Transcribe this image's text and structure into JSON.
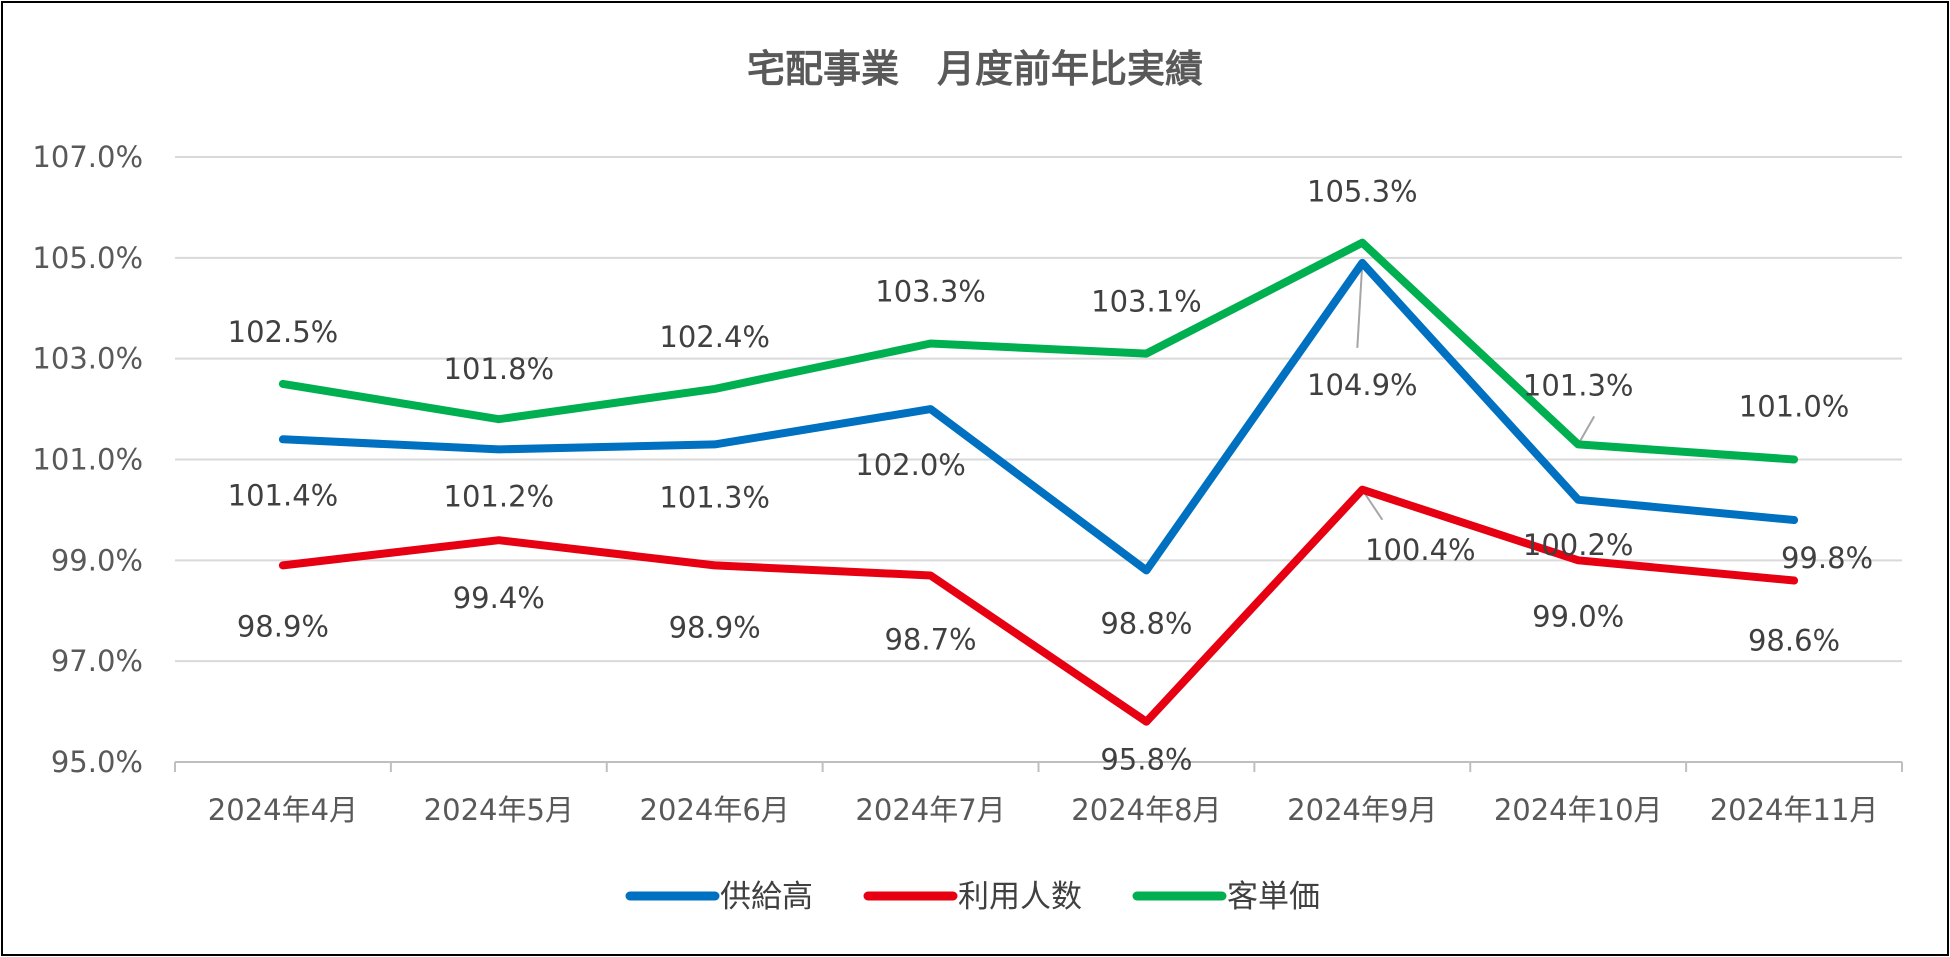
{
  "chart_data": {
    "type": "line",
    "title": "宅配事業　月度前年比実績",
    "xlabel": "",
    "ylabel": "",
    "ylim": [
      95.0,
      107.0
    ],
    "yticks": [
      "95.0%",
      "97.0%",
      "99.0%",
      "101.0%",
      "103.0%",
      "105.0%",
      "107.0%"
    ],
    "ytick_values": [
      95,
      97,
      99,
      101,
      103,
      105,
      107
    ],
    "categories": [
      "2024年4月",
      "2024年5月",
      "2024年6月",
      "2024年7月",
      "2024年8月",
      "2024年9月",
      "2024年10月",
      "2024年11月"
    ],
    "grid": "horizontal",
    "legend_position": "bottom-center",
    "series": [
      {
        "name": "供給高",
        "color": "#0070C0",
        "values": [
          101.4,
          101.2,
          101.3,
          102.0,
          98.8,
          104.9,
          100.2,
          99.8
        ],
        "labels": [
          "101.4%",
          "101.2%",
          "101.3%",
          "102.0%",
          "98.8%",
          "104.9%",
          "100.2%",
          "99.8%"
        ]
      },
      {
        "name": "利用人数",
        "color": "#E60012",
        "values": [
          98.9,
          99.4,
          98.9,
          98.7,
          95.8,
          100.4,
          99.0,
          98.6
        ],
        "labels": [
          "98.9%",
          "99.4%",
          "98.9%",
          "98.7%",
          "95.8%",
          "100.4%",
          "99.0%",
          "98.6%"
        ]
      },
      {
        "name": "客単価",
        "color": "#00B050",
        "values": [
          102.5,
          101.8,
          102.4,
          103.3,
          103.1,
          105.3,
          101.3,
          101.0
        ],
        "labels": [
          "102.5%",
          "101.8%",
          "102.4%",
          "103.3%",
          "103.1%",
          "105.3%",
          "101.3%",
          "101.0%"
        ]
      }
    ]
  },
  "colors": {
    "grid": "#D9D9D9",
    "axis": "#BFBFBF",
    "text": "#595959",
    "leader": "#A6A6A6"
  }
}
